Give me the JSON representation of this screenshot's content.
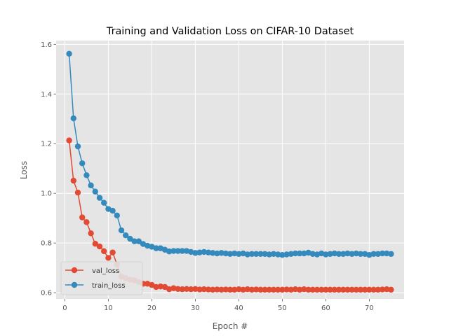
{
  "chart_data": {
    "type": "line",
    "title": "Training and Validation Loss on CIFAR-10 Dataset",
    "xlabel": "Epoch #",
    "ylabel": "Loss",
    "xlim": [
      -2,
      78
    ],
    "ylim": [
      0.575,
      1.615
    ],
    "xticks": [
      0,
      10,
      20,
      30,
      40,
      50,
      60,
      70
    ],
    "yticks": [
      0.6,
      0.8,
      1.0,
      1.2,
      1.4,
      1.6
    ],
    "ytick_labels": [
      "0.6",
      "0.8",
      "1.0",
      "1.2",
      "1.4",
      "1.6"
    ],
    "grid": true,
    "legend_position": "lower-left",
    "style": "ggplot",
    "x": [
      1,
      2,
      3,
      4,
      5,
      6,
      7,
      8,
      9,
      10,
      11,
      12,
      13,
      14,
      15,
      16,
      17,
      18,
      19,
      20,
      21,
      22,
      23,
      24,
      25,
      26,
      27,
      28,
      29,
      30,
      31,
      32,
      33,
      34,
      35,
      36,
      37,
      38,
      39,
      40,
      41,
      42,
      43,
      44,
      45,
      46,
      47,
      48,
      49,
      50,
      51,
      52,
      53,
      54,
      55,
      56,
      57,
      58,
      59,
      60,
      61,
      62,
      63,
      64,
      65,
      66,
      67,
      68,
      69,
      70,
      71,
      72,
      73,
      74,
      75
    ],
    "series": [
      {
        "name": "val_loss",
        "color": "#E24A33",
        "values": [
          1.213,
          1.051,
          1.003,
          0.903,
          0.884,
          0.839,
          0.797,
          0.786,
          0.767,
          0.74,
          0.762,
          0.713,
          0.665,
          0.659,
          0.652,
          0.65,
          0.643,
          0.636,
          0.636,
          0.631,
          0.623,
          0.625,
          0.623,
          0.614,
          0.618,
          0.615,
          0.614,
          0.615,
          0.614,
          0.615,
          0.613,
          0.614,
          0.613,
          0.612,
          0.613,
          0.612,
          0.613,
          0.612,
          0.612,
          0.614,
          0.612,
          0.614,
          0.612,
          0.613,
          0.612,
          0.612,
          0.612,
          0.612,
          0.612,
          0.612,
          0.613,
          0.612,
          0.614,
          0.612,
          0.614,
          0.612,
          0.612,
          0.612,
          0.612,
          0.612,
          0.612,
          0.612,
          0.612,
          0.612,
          0.612,
          0.612,
          0.612,
          0.612,
          0.612,
          0.612,
          0.612,
          0.612,
          0.613,
          0.614,
          0.612
        ]
      },
      {
        "name": "train_loss",
        "color": "#348ABD",
        "values": [
          1.562,
          1.302,
          1.189,
          1.121,
          1.073,
          1.032,
          1.007,
          0.982,
          0.962,
          0.937,
          0.93,
          0.911,
          0.851,
          0.831,
          0.817,
          0.807,
          0.807,
          0.796,
          0.789,
          0.785,
          0.779,
          0.779,
          0.773,
          0.766,
          0.768,
          0.768,
          0.768,
          0.768,
          0.764,
          0.76,
          0.762,
          0.764,
          0.762,
          0.76,
          0.758,
          0.76,
          0.758,
          0.756,
          0.758,
          0.756,
          0.758,
          0.754,
          0.756,
          0.756,
          0.756,
          0.756,
          0.754,
          0.756,
          0.754,
          0.752,
          0.754,
          0.756,
          0.758,
          0.758,
          0.758,
          0.761,
          0.756,
          0.754,
          0.758,
          0.754,
          0.756,
          0.758,
          0.756,
          0.756,
          0.758,
          0.756,
          0.758,
          0.756,
          0.756,
          0.752,
          0.756,
          0.756,
          0.758,
          0.758,
          0.756
        ]
      }
    ]
  }
}
